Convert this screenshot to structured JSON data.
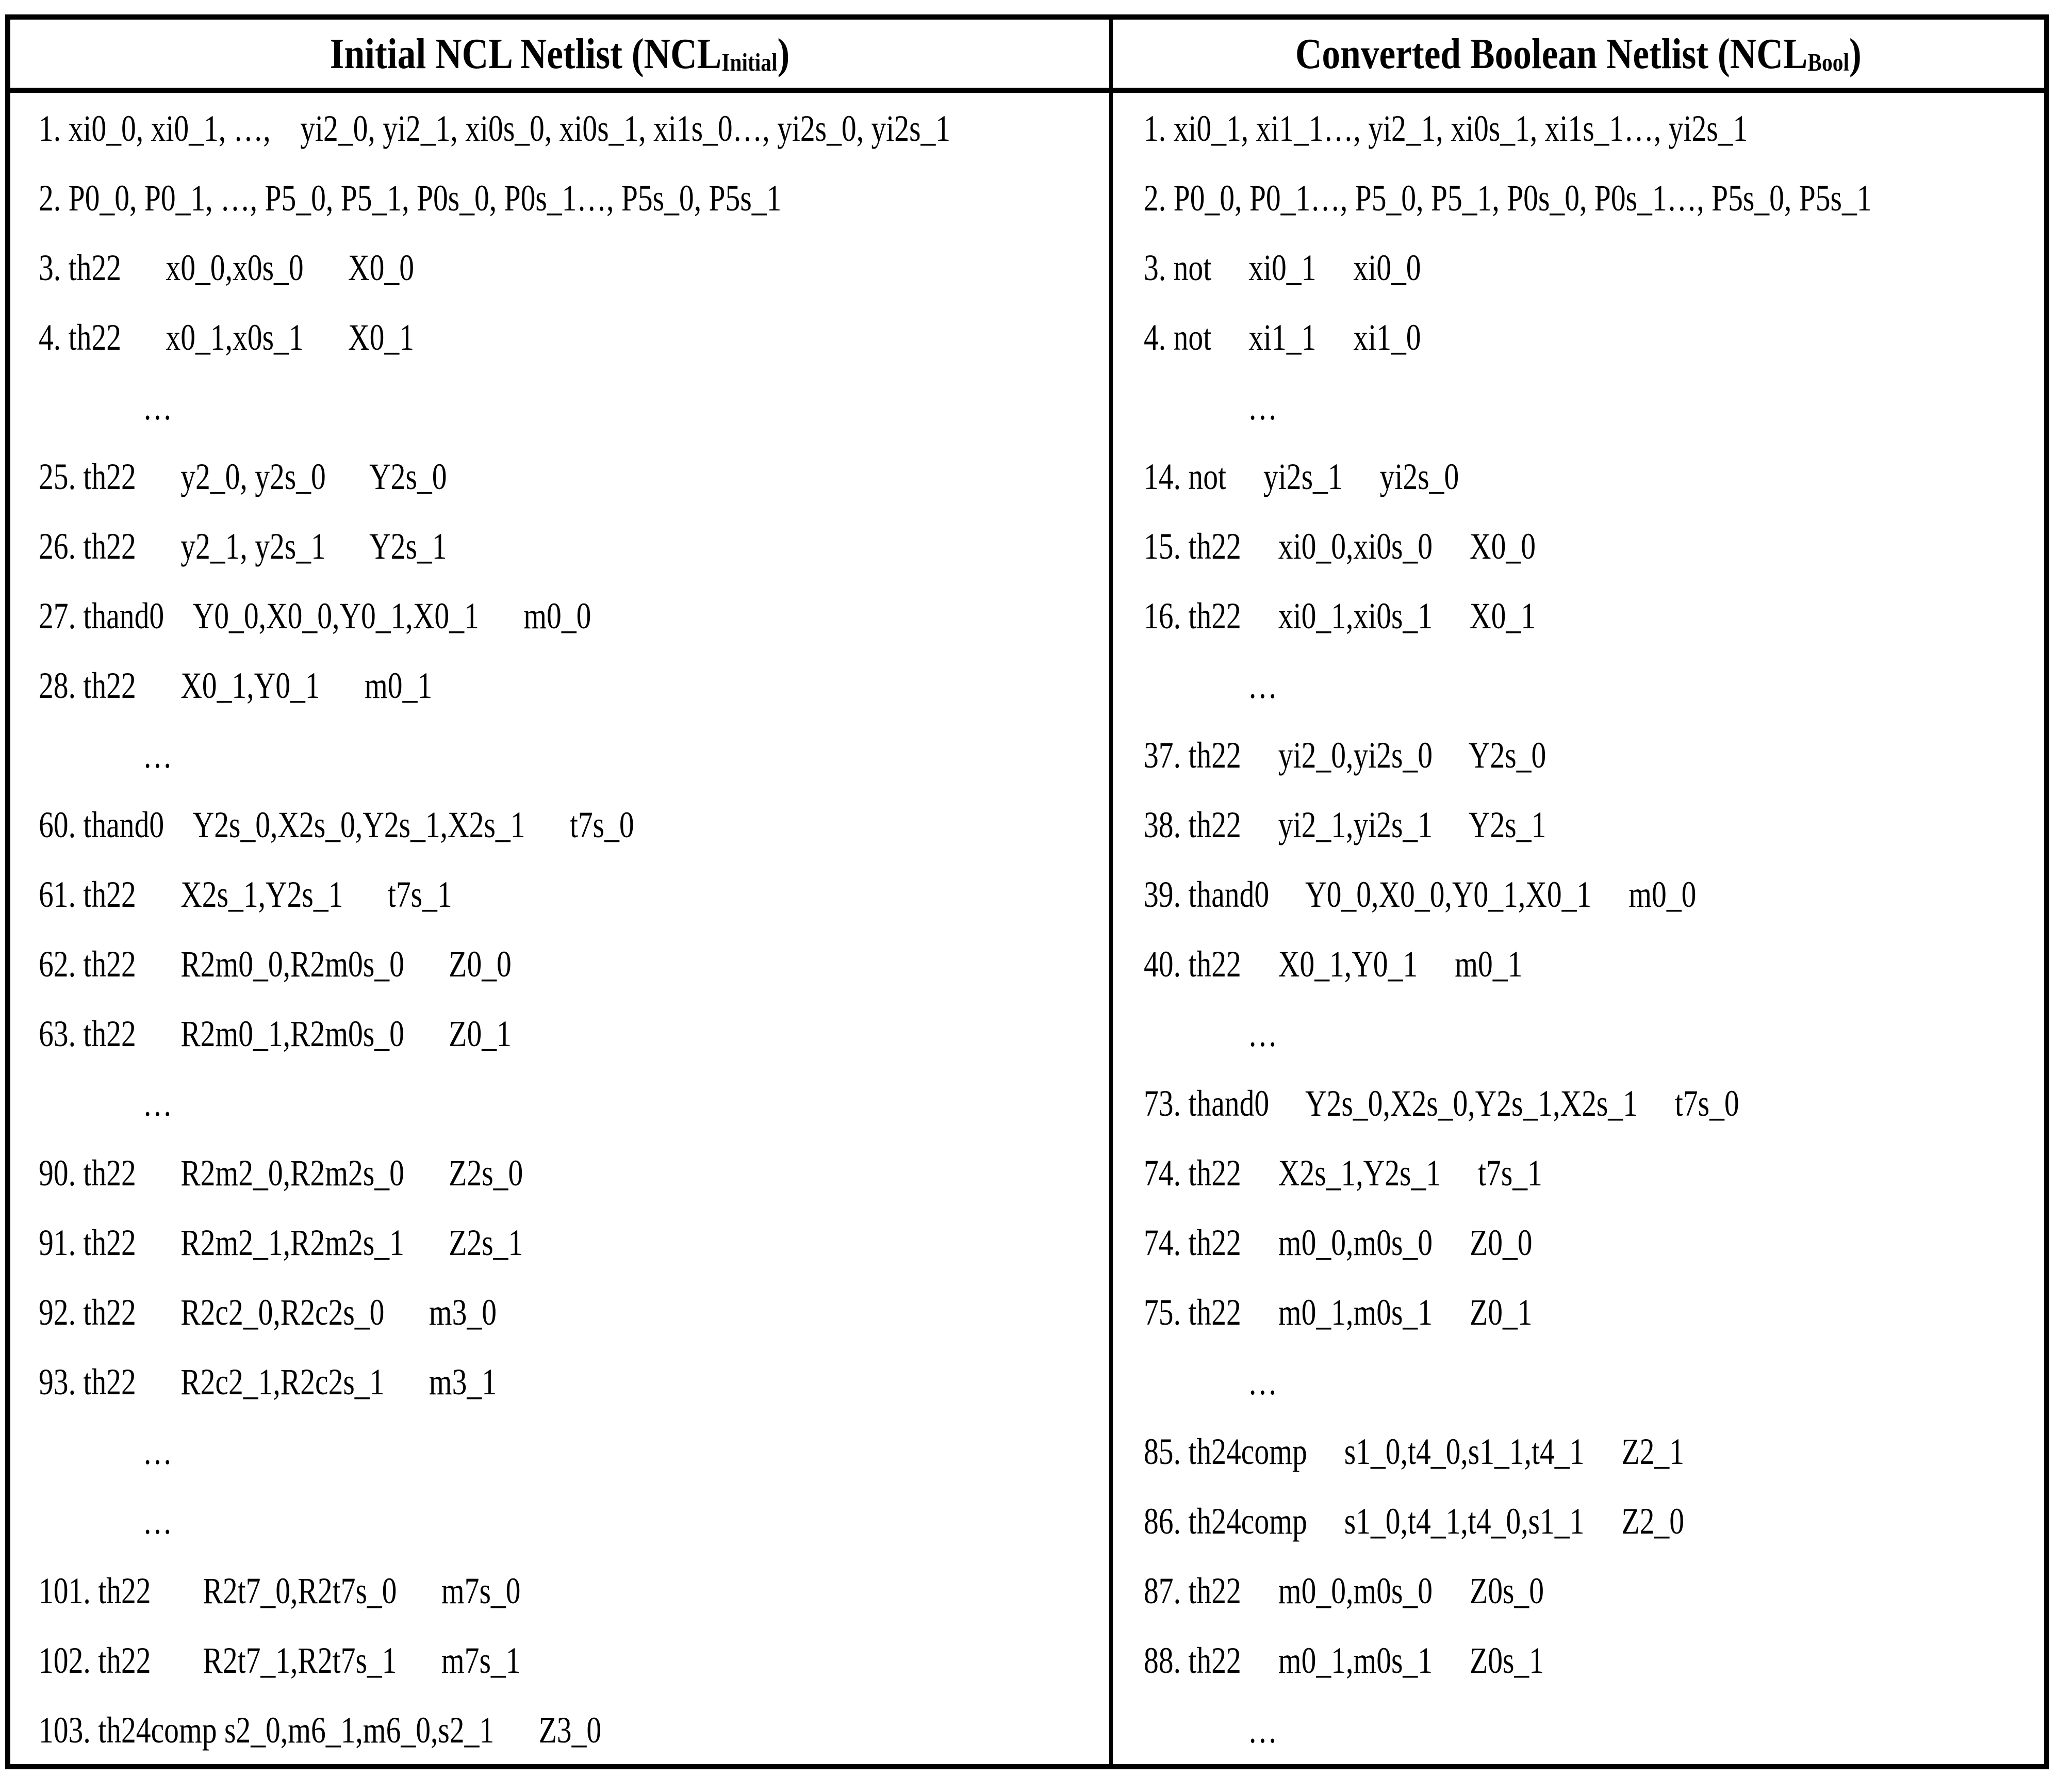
{
  "header": {
    "left": {
      "prefix": "Initial NCL Netlist (NCL",
      "sub": "Initial",
      "suffix": ")"
    },
    "right": {
      "prefix": "Converted Boolean Netlist (NCL",
      "sub": "Bool",
      "suffix": ")"
    }
  },
  "left_column": {
    "lines": [
      "1. xi0_0, xi0_1, …,    yi2_0, yi2_1, xi0s_0, xi0s_1, xi1s_0…, yi2s_0, yi2s_1",
      "2. P0_0, P0_1, …, P5_0, P5_1, P0s_0, P0s_1…, P5s_0, P5s_1",
      "3. th22      x0_0,x0s_0      X0_0",
      "4. th22      x0_1,x0s_1      X0_1",
      "              …",
      "25. th22      y2_0, y2s_0      Y2s_0",
      "26. th22      y2_1, y2s_1      Y2s_1",
      "27. thand0    Y0_0,X0_0,Y0_1,X0_1      m0_0",
      "28. th22      X0_1,Y0_1      m0_1",
      "              …",
      "60. thand0    Y2s_0,X2s_0,Y2s_1,X2s_1      t7s_0",
      "61. th22      X2s_1,Y2s_1      t7s_1",
      "62. th22      R2m0_0,R2m0s_0      Z0_0",
      "63. th22      R2m0_1,R2m0s_0      Z0_1",
      "              …",
      "90. th22      R2m2_0,R2m2s_0      Z2s_0",
      "91. th22      R2m2_1,R2m2s_1      Z2s_1",
      "92. th22      R2c2_0,R2c2s_0      m3_0",
      "93. th22      R2c2_1,R2c2s_1      m3_1",
      "              …",
      "              …",
      "101. th22       R2t7_0,R2t7s_0      m7s_0",
      "102. th22       R2t7_1,R2t7s_1      m7s_1",
      "103. th24comp s2_0,m6_1,m6_0,s2_1      Z3_0"
    ]
  },
  "right_column": {
    "lines": [
      "1. xi0_1, xi1_1…, yi2_1, xi0s_1, xi1s_1…, yi2s_1",
      "2. P0_0, P0_1…, P5_0, P5_1, P0s_0, P0s_1…, P5s_0, P5s_1",
      "3. not     xi0_1     xi0_0",
      "4. not     xi1_1     xi1_0",
      "              …",
      "14. not     yi2s_1     yi2s_0",
      "15. th22     xi0_0,xi0s_0     X0_0",
      "16. th22     xi0_1,xi0s_1     X0_1",
      "              …",
      "37. th22     yi2_0,yi2s_0     Y2s_0",
      "38. th22     yi2_1,yi2s_1     Y2s_1",
      "39. thand0     Y0_0,X0_0,Y0_1,X0_1     m0_0",
      "40. th22     X0_1,Y0_1     m0_1",
      "              …",
      "73. thand0     Y2s_0,X2s_0,Y2s_1,X2s_1     t7s_0",
      "74. th22     X2s_1,Y2s_1     t7s_1",
      "74. th22     m0_0,m0s_0     Z0_0",
      "75. th22     m0_1,m0s_1     Z0_1",
      "              …",
      "85. th24comp     s1_0,t4_0,s1_1,t4_1     Z2_1",
      "86. th24comp     s1_0,t4_1,t4_0,s1_1     Z2_0",
      "87. th22     m0_0,m0s_0     Z0s_0",
      "88. th22     m0_1,m0s_1     Z0s_1",
      "              …"
    ]
  }
}
